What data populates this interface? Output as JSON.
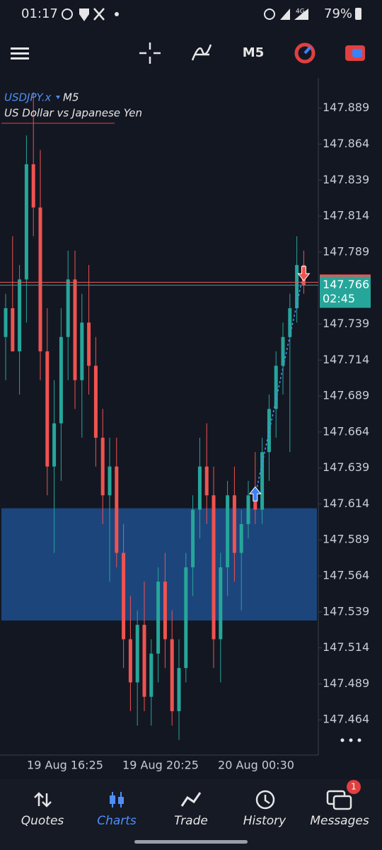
{
  "status_bar": {
    "time": "01:17",
    "network": "4G",
    "battery": "79%"
  },
  "toolbar": {
    "timeframe": "M5"
  },
  "chart": {
    "type": "candlestick",
    "symbol": "USDJPY.x",
    "timeframe": "M5",
    "description": "US Dollar vs Japanese Yen",
    "ylim": [
      147.44,
      147.91
    ],
    "yticks": [
      147.889,
      147.864,
      147.839,
      147.814,
      147.789,
      147.739,
      147.714,
      147.689,
      147.664,
      147.639,
      147.614,
      147.589,
      147.564,
      147.539,
      147.514,
      147.489,
      147.464
    ],
    "up_color": "#26a69a",
    "down_color": "#ef5350",
    "zone_color": "#1e4e8c",
    "zone": [
      147.533,
      147.611
    ],
    "bid": 147.766,
    "bid_timer": "02:45",
    "ask": 147.768,
    "trade": {
      "entry": 147.62,
      "exit": 147.775
    },
    "xlabels": [
      "19 Aug 16:25",
      "19 Aug 20:25",
      "20 Aug 00:30"
    ],
    "candles": [
      [
        147.73,
        147.76,
        147.7,
        147.75
      ],
      [
        147.75,
        147.8,
        147.72,
        147.72
      ],
      [
        147.72,
        147.78,
        147.69,
        147.77
      ],
      [
        147.77,
        147.87,
        147.74,
        147.85
      ],
      [
        147.85,
        147.9,
        147.8,
        147.82
      ],
      [
        147.82,
        147.86,
        147.7,
        147.72
      ],
      [
        147.72,
        147.75,
        147.62,
        147.64
      ],
      [
        147.64,
        147.7,
        147.58,
        147.67
      ],
      [
        147.67,
        147.75,
        147.63,
        147.73
      ],
      [
        147.73,
        147.79,
        147.7,
        147.77
      ],
      [
        147.77,
        147.79,
        147.68,
        147.7
      ],
      [
        147.7,
        147.76,
        147.66,
        147.74
      ],
      [
        147.74,
        147.78,
        147.69,
        147.71
      ],
      [
        147.71,
        147.73,
        147.64,
        147.66
      ],
      [
        147.66,
        147.68,
        147.6,
        147.62
      ],
      [
        147.62,
        147.66,
        147.56,
        147.64
      ],
      [
        147.64,
        147.66,
        147.57,
        147.58
      ],
      [
        147.58,
        147.6,
        147.5,
        147.52
      ],
      [
        147.52,
        147.55,
        147.47,
        147.49
      ],
      [
        147.49,
        147.54,
        147.46,
        147.53
      ],
      [
        147.53,
        147.56,
        147.47,
        147.48
      ],
      [
        147.48,
        147.52,
        147.46,
        147.51
      ],
      [
        147.51,
        147.57,
        147.49,
        147.56
      ],
      [
        147.56,
        147.58,
        147.5,
        147.52
      ],
      [
        147.52,
        147.54,
        147.46,
        147.47
      ],
      [
        147.47,
        147.52,
        147.45,
        147.5
      ],
      [
        147.5,
        147.58,
        147.49,
        147.57
      ],
      [
        147.57,
        147.62,
        147.55,
        147.61
      ],
      [
        147.61,
        147.66,
        147.59,
        147.64
      ],
      [
        147.64,
        147.67,
        147.6,
        147.62
      ],
      [
        147.62,
        147.64,
        147.5,
        147.52
      ],
      [
        147.52,
        147.58,
        147.49,
        147.57
      ],
      [
        147.57,
        147.63,
        147.55,
        147.62
      ],
      [
        147.62,
        147.64,
        147.56,
        147.58
      ],
      [
        147.58,
        147.61,
        147.54,
        147.6
      ],
      [
        147.6,
        147.63,
        147.59,
        147.62
      ],
      [
        147.62,
        147.65,
        147.6,
        147.61
      ],
      [
        147.61,
        147.66,
        147.6,
        147.65
      ],
      [
        147.65,
        147.69,
        147.63,
        147.68
      ],
      [
        147.68,
        147.72,
        147.66,
        147.71
      ],
      [
        147.71,
        147.74,
        147.69,
        147.73
      ],
      [
        147.73,
        147.76,
        147.65,
        147.75
      ],
      [
        147.75,
        147.8,
        147.74,
        147.78
      ],
      [
        147.78,
        147.79,
        147.76,
        147.766
      ]
    ]
  },
  "nav": {
    "items": [
      "Quotes",
      "Charts",
      "Trade",
      "History",
      "Messages"
    ],
    "badge": 1
  }
}
